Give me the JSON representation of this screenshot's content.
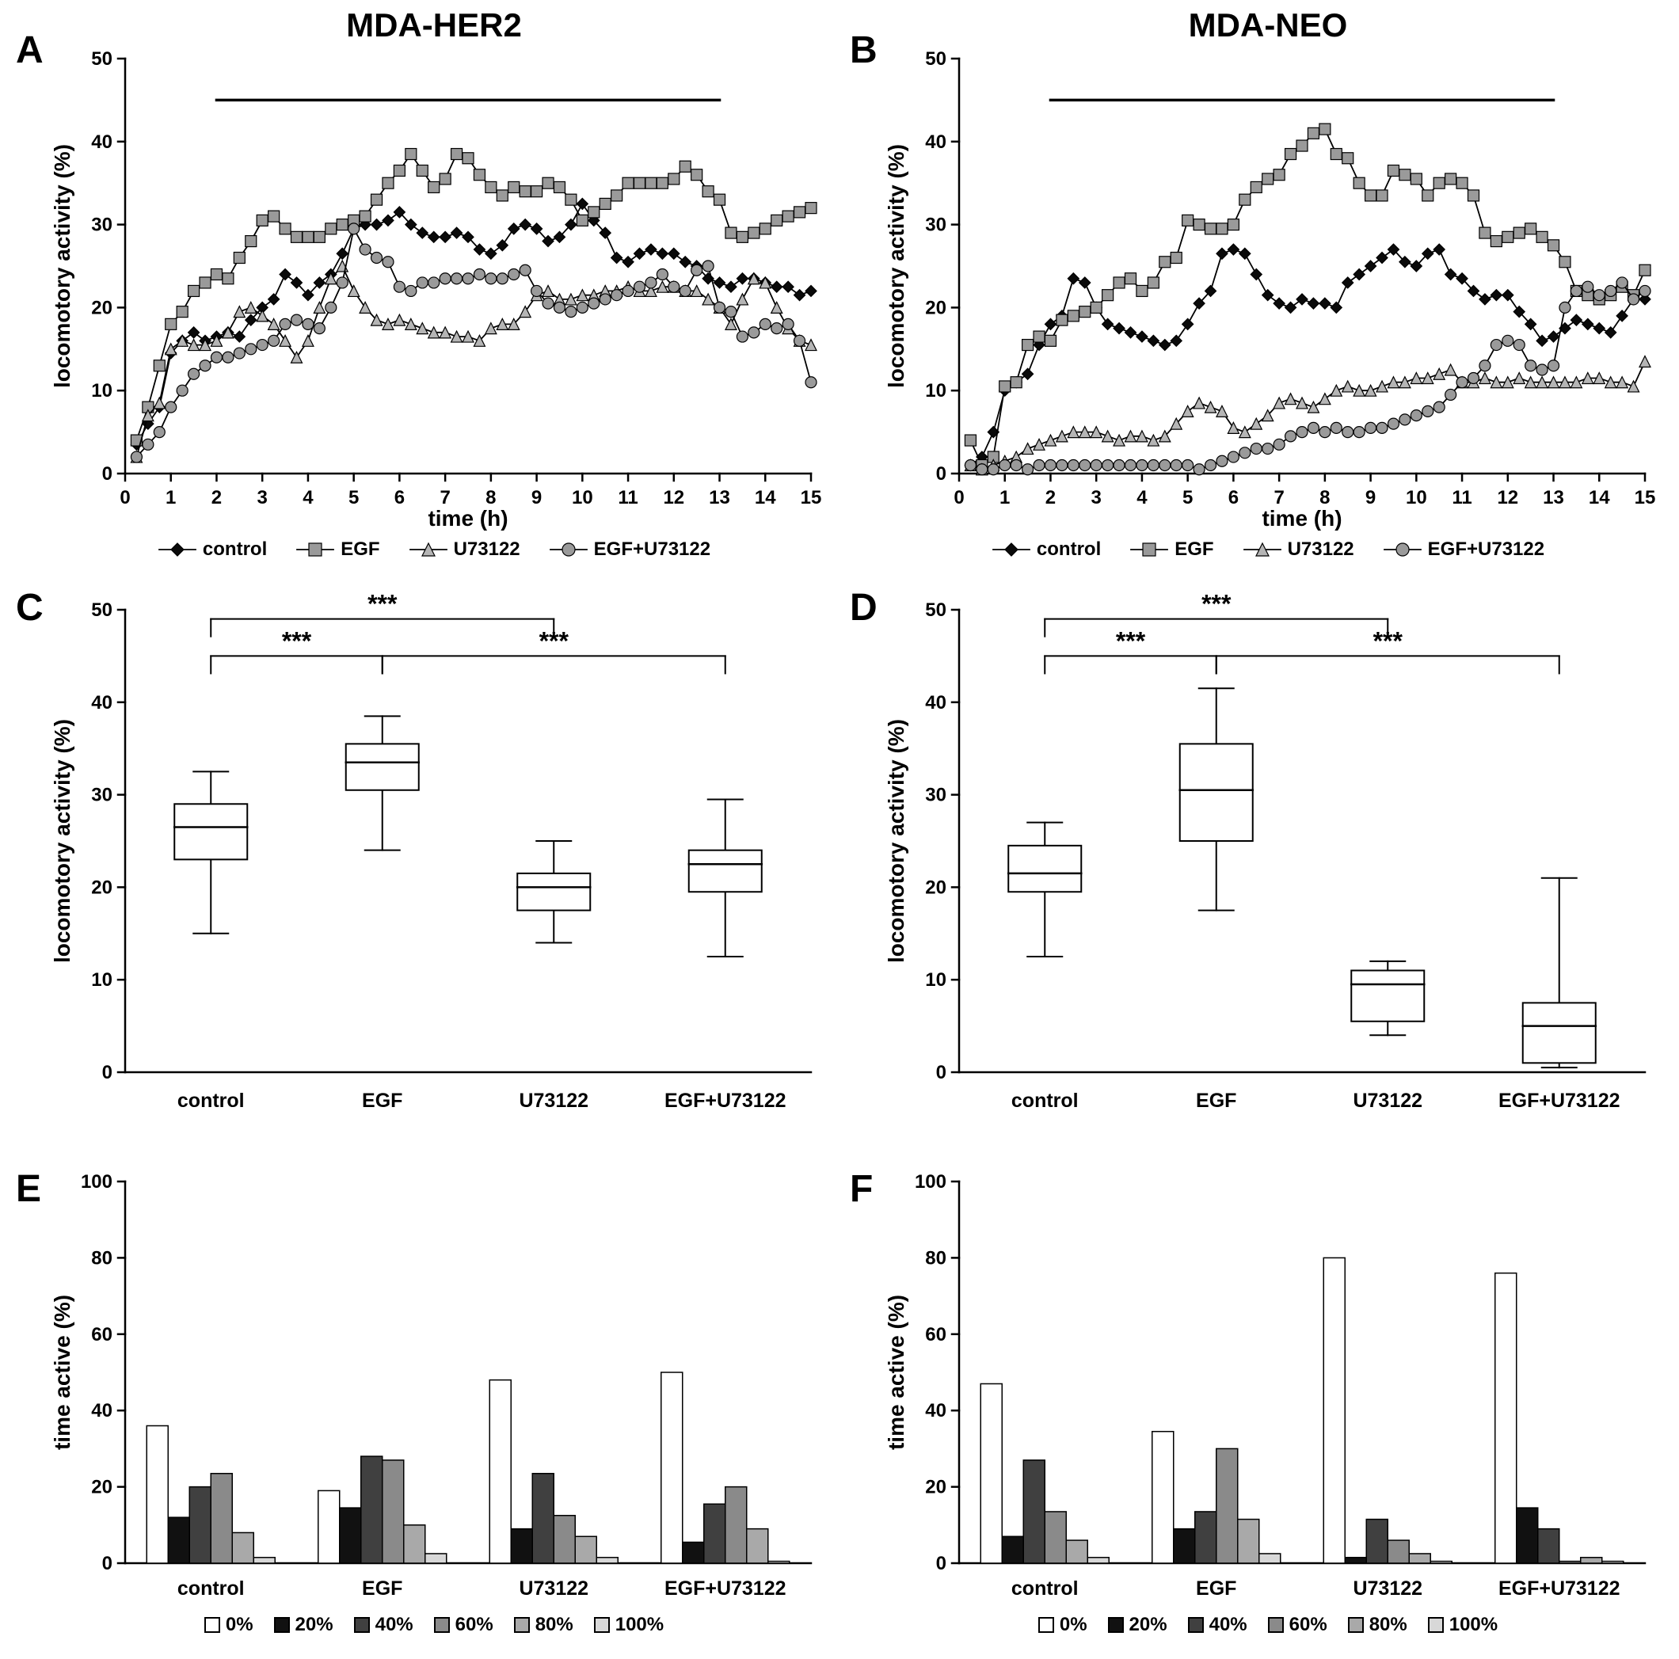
{
  "panels": [
    {
      "letter": "A",
      "title": "MDA-HER2"
    },
    {
      "letter": "B",
      "title": "MDA-NEO"
    },
    {
      "letter": "C"
    },
    {
      "letter": "D"
    },
    {
      "letter": "E"
    },
    {
      "letter": "F"
    }
  ],
  "styles": {
    "axis_color": "#000000",
    "line_color": "#000000",
    "marker_fills": {
      "control": "#0a0a0a",
      "EGF": "#9a9a9a",
      "U73122": "#b5b5b5",
      "EGF+U73122": "#9a9a9a"
    },
    "bar_colors": {
      "0%": "#ffffff",
      "20%": "#111111",
      "40%": "#404040",
      "60%": "#8a8a8a",
      "80%": "#a9a9a9",
      "100%": "#d8d8d8"
    }
  },
  "chart_data": [
    {
      "id": "A",
      "type": "line",
      "title": "MDA-HER2",
      "xlabel": "time (h)",
      "ylabel": "locomotory activity (%)",
      "xlim": [
        0,
        15
      ],
      "ylim": [
        0,
        50
      ],
      "xticks": [
        0,
        1,
        2,
        3,
        4,
        5,
        6,
        7,
        8,
        9,
        10,
        11,
        12,
        13,
        14,
        15
      ],
      "yticks": [
        0,
        10,
        20,
        30,
        40,
        50
      ],
      "treatment_bar": {
        "x1": 2,
        "x2": 13,
        "y": 45
      },
      "x": [
        0.25,
        0.5,
        0.75,
        1,
        1.25,
        1.5,
        1.75,
        2,
        2.25,
        2.5,
        2.75,
        3,
        3.25,
        3.5,
        3.75,
        4,
        4.25,
        4.5,
        4.75,
        5,
        5.25,
        5.5,
        5.75,
        6,
        6.25,
        6.5,
        6.75,
        7,
        7.25,
        7.5,
        7.75,
        8,
        8.25,
        8.5,
        8.75,
        9,
        9.25,
        9.5,
        9.75,
        10,
        10.25,
        10.5,
        10.75,
        11,
        11.25,
        11.5,
        11.75,
        12,
        12.25,
        12.5,
        12.75,
        13,
        13.25,
        13.5,
        13.75,
        14,
        14.25,
        14.5,
        14.75,
        15
      ],
      "series": [
        {
          "name": "control",
          "marker": "diamond",
          "fill": "#0a0a0a",
          "values": [
            3.5,
            6,
            8,
            14.5,
            16,
            17,
            16,
            16.5,
            17,
            16.5,
            18.5,
            20,
            21,
            24,
            23,
            21.5,
            23,
            24,
            26.5,
            29.5,
            30,
            30,
            30.5,
            31.5,
            30,
            29,
            28.5,
            28.5,
            29,
            28.5,
            27,
            26.5,
            27.5,
            29.5,
            30,
            29.5,
            28,
            28.5,
            30,
            32.5,
            30.5,
            29,
            26,
            25.5,
            26.5,
            27,
            26.5,
            26.5,
            25.5,
            25,
            23.5,
            23,
            22.5,
            23.5,
            23.5,
            23,
            22.5,
            22.5,
            21.5,
            22
          ]
        },
        {
          "name": "EGF",
          "marker": "square",
          "fill": "#9a9a9a",
          "values": [
            4,
            8,
            13,
            18,
            19.5,
            22,
            23,
            24,
            23.5,
            26,
            28,
            30.5,
            31,
            29.5,
            28.5,
            28.5,
            28.5,
            29.5,
            30,
            30.5,
            31,
            33,
            35,
            36.5,
            38.5,
            36.5,
            34.5,
            35.5,
            38.5,
            38,
            36,
            34.5,
            33.5,
            34.5,
            34,
            34,
            35,
            34.5,
            33,
            30.5,
            31.5,
            32.5,
            33.5,
            35,
            35,
            35,
            35,
            35.5,
            37,
            36,
            34,
            33,
            29,
            28.5,
            29,
            29.5,
            30.5,
            31,
            31.5,
            32
          ]
        },
        {
          "name": "U73122",
          "marker": "triangle",
          "fill": "#b5b5b5",
          "values": [
            2,
            7,
            8.5,
            15,
            16,
            15.5,
            15.5,
            16,
            17,
            19.5,
            20,
            19,
            18,
            16,
            14,
            16,
            20,
            23.5,
            25,
            22,
            20,
            18.5,
            18,
            18.5,
            18,
            17.5,
            17,
            17,
            16.5,
            16.5,
            16,
            17.5,
            18,
            18,
            19.5,
            21.5,
            22,
            21,
            21,
            21.5,
            21.5,
            22,
            22,
            22.5,
            22,
            22,
            22.5,
            22.5,
            22,
            22,
            21,
            20,
            18,
            21,
            23.5,
            23,
            20,
            17.5,
            16,
            15.5
          ]
        },
        {
          "name": "EGF+U73122",
          "marker": "circle",
          "fill": "#9a9a9a",
          "values": [
            2,
            3.5,
            5,
            8,
            10,
            12,
            13,
            14,
            14,
            14.5,
            15,
            15.5,
            16,
            18,
            18.5,
            18,
            17.5,
            20,
            23,
            29.5,
            27,
            26,
            25.5,
            22.5,
            22,
            23,
            23,
            23.5,
            23.5,
            23.5,
            24,
            23.5,
            23.5,
            24,
            24.5,
            22,
            20.5,
            20,
            19.5,
            20,
            20.5,
            21,
            21.5,
            22,
            22.5,
            23,
            24,
            22.5,
            22,
            24.5,
            25,
            20,
            19.5,
            16.5,
            17,
            18,
            17.5,
            18,
            16,
            11
          ]
        }
      ]
    },
    {
      "id": "B",
      "type": "line",
      "title": "MDA-NEO",
      "xlabel": "time (h)",
      "ylabel": "locomotory activity (%)",
      "xlim": [
        0,
        15
      ],
      "ylim": [
        0,
        50
      ],
      "xticks": [
        0,
        1,
        2,
        3,
        4,
        5,
        6,
        7,
        8,
        9,
        10,
        11,
        12,
        13,
        14,
        15
      ],
      "yticks": [
        0,
        10,
        20,
        30,
        40,
        50
      ],
      "treatment_bar": {
        "x1": 2,
        "x2": 13,
        "y": 45
      },
      "x": [
        0.25,
        0.5,
        0.75,
        1,
        1.25,
        1.5,
        1.75,
        2,
        2.25,
        2.5,
        2.75,
        3,
        3.25,
        3.5,
        3.75,
        4,
        4.25,
        4.5,
        4.75,
        5,
        5.25,
        5.5,
        5.75,
        6,
        6.25,
        6.5,
        6.75,
        7,
        7.25,
        7.5,
        7.75,
        8,
        8.25,
        8.5,
        8.75,
        9,
        9.25,
        9.5,
        9.75,
        10,
        10.25,
        10.5,
        10.75,
        11,
        11.25,
        11.5,
        11.75,
        12,
        12.25,
        12.5,
        12.75,
        13,
        13.25,
        13.5,
        13.75,
        14,
        14.25,
        14.5,
        14.75,
        15
      ],
      "series": [
        {
          "name": "control",
          "marker": "diamond",
          "fill": "#0a0a0a",
          "values": [
            1,
            2,
            5,
            10,
            11,
            12,
            15.5,
            18,
            19,
            23.5,
            23,
            20,
            18,
            17.5,
            17,
            16.5,
            16,
            15.5,
            16,
            18,
            20.5,
            22,
            26.5,
            27,
            26.5,
            24,
            21.5,
            20.5,
            20,
            21,
            20.5,
            20.5,
            20,
            23,
            24,
            25,
            26,
            27,
            25.5,
            25,
            26.5,
            27,
            24,
            23.5,
            22,
            21,
            21.5,
            21.5,
            19.5,
            18,
            16,
            16.5,
            17.5,
            18.5,
            18,
            17.5,
            17,
            19,
            21,
            21
          ]
        },
        {
          "name": "EGF",
          "marker": "square",
          "fill": "#9a9a9a",
          "values": [
            4,
            1,
            2,
            10.5,
            11,
            15.5,
            16.5,
            16,
            18.5,
            19,
            19.5,
            20,
            21.5,
            23,
            23.5,
            22,
            23,
            25.5,
            26,
            30.5,
            30,
            29.5,
            29.5,
            30,
            33,
            34.5,
            35.5,
            36,
            38.5,
            39.5,
            41,
            41.5,
            38.5,
            38,
            35,
            33.5,
            33.5,
            36.5,
            36,
            35.5,
            33.5,
            35,
            35.5,
            35,
            33.5,
            29,
            28,
            28.5,
            29,
            29.5,
            28.5,
            27.5,
            25.5,
            22,
            21.5,
            21,
            21.5,
            22.5,
            21.5,
            24.5
          ]
        },
        {
          "name": "U73122",
          "marker": "triangle",
          "fill": "#b5b5b5",
          "values": [
            1,
            0.5,
            1,
            1.5,
            2,
            3,
            3.5,
            4,
            4.5,
            5,
            5,
            5,
            4.5,
            4,
            4.5,
            4.5,
            4,
            4.5,
            6,
            7.5,
            8.5,
            8,
            7.5,
            5.5,
            5,
            6,
            7,
            8.5,
            9,
            8.5,
            8,
            9,
            10,
            10.5,
            10,
            10,
            10.5,
            11,
            11,
            11.5,
            11.5,
            12,
            12.5,
            11,
            11,
            11.5,
            11,
            11,
            11.5,
            11,
            11,
            11,
            11,
            11,
            11.5,
            11.5,
            11,
            11,
            10.5,
            13.5
          ]
        },
        {
          "name": "EGF+U73122",
          "marker": "circle",
          "fill": "#9a9a9a",
          "values": [
            1,
            0.5,
            0.5,
            1,
            1,
            0.5,
            1,
            1,
            1,
            1,
            1,
            1,
            1,
            1,
            1,
            1,
            1,
            1,
            1,
            1,
            0.5,
            1,
            1.5,
            2,
            2.5,
            3,
            3,
            3.5,
            4.5,
            5,
            5.5,
            5,
            5.5,
            5,
            5,
            5.5,
            5.5,
            6,
            6.5,
            7,
            7.5,
            8,
            9.5,
            11,
            11.5,
            13,
            15.5,
            16,
            15.5,
            13,
            12.5,
            13,
            20,
            22,
            22.5,
            21.5,
            22,
            23,
            21,
            22
          ]
        }
      ]
    },
    {
      "id": "C",
      "type": "box",
      "ylabel": "locomotory activity (%)",
      "ylim": [
        0,
        50
      ],
      "yticks": [
        0,
        10,
        20,
        30,
        40,
        50
      ],
      "categories": [
        "control",
        "EGF",
        "U73122",
        "EGF+U73122"
      ],
      "boxes": [
        {
          "whisker_low": 15,
          "q1": 23,
          "median": 26.5,
          "q3": 29,
          "whisker_high": 32.5
        },
        {
          "whisker_low": 24,
          "q1": 30.5,
          "median": 33.5,
          "q3": 35.5,
          "whisker_high": 38.5
        },
        {
          "whisker_low": 14,
          "q1": 17.5,
          "median": 20,
          "q3": 21.5,
          "whisker_high": 25
        },
        {
          "whisker_low": 12.5,
          "q1": 19.5,
          "median": 22.5,
          "q3": 24,
          "whisker_high": 29.5
        }
      ],
      "significance_brackets": [
        {
          "from": 0,
          "to": 2,
          "y": 49,
          "label": "***"
        },
        {
          "from": 0,
          "to": 1,
          "y": 45,
          "label": "***"
        },
        {
          "from": 1,
          "to": 3,
          "y": 45,
          "label": "***"
        }
      ]
    },
    {
      "id": "D",
      "type": "box",
      "ylabel": "locomotory activity (%)",
      "ylim": [
        0,
        50
      ],
      "yticks": [
        0,
        10,
        20,
        30,
        40,
        50
      ],
      "categories": [
        "control",
        "EGF",
        "U73122",
        "EGF+U73122"
      ],
      "boxes": [
        {
          "whisker_low": 12.5,
          "q1": 19.5,
          "median": 21.5,
          "q3": 24.5,
          "whisker_high": 27
        },
        {
          "whisker_low": 17.5,
          "q1": 25,
          "median": 30.5,
          "q3": 35.5,
          "whisker_high": 41.5
        },
        {
          "whisker_low": 4,
          "q1": 5.5,
          "median": 9.5,
          "q3": 11,
          "whisker_high": 12
        },
        {
          "whisker_low": 0.5,
          "q1": 1,
          "median": 5,
          "q3": 7.5,
          "whisker_high": 21
        }
      ],
      "significance_brackets": [
        {
          "from": 0,
          "to": 2,
          "y": 49,
          "label": "***"
        },
        {
          "from": 0,
          "to": 1,
          "y": 45,
          "label": "***"
        },
        {
          "from": 1,
          "to": 3,
          "y": 45,
          "label": "***"
        }
      ]
    },
    {
      "id": "E",
      "type": "groupedbar",
      "ylabel": "time active (%)",
      "ylim": [
        0,
        100
      ],
      "yticks": [
        0,
        20,
        40,
        60,
        80,
        100
      ],
      "categories": [
        "control",
        "EGF",
        "U73122",
        "EGF+U73122"
      ],
      "series": [
        {
          "name": "0%",
          "color": "#ffffff",
          "values": [
            36,
            19,
            48,
            50
          ]
        },
        {
          "name": "20%",
          "color": "#111111",
          "values": [
            12,
            14.5,
            9,
            5.5
          ]
        },
        {
          "name": "40%",
          "color": "#404040",
          "values": [
            20,
            28,
            23.5,
            15.5
          ]
        },
        {
          "name": "60%",
          "color": "#8a8a8a",
          "values": [
            23.5,
            27,
            12.5,
            20
          ]
        },
        {
          "name": "80%",
          "color": "#a9a9a9",
          "values": [
            8,
            10,
            7,
            9
          ]
        },
        {
          "name": "100%",
          "color": "#d8d8d8",
          "values": [
            1.5,
            2.5,
            1.5,
            0.5
          ]
        }
      ]
    },
    {
      "id": "F",
      "type": "groupedbar",
      "ylabel": "time active (%)",
      "ylim": [
        0,
        100
      ],
      "yticks": [
        0,
        20,
        40,
        60,
        80,
        100
      ],
      "categories": [
        "control",
        "EGF",
        "U73122",
        "EGF+U73122"
      ],
      "series": [
        {
          "name": "0%",
          "color": "#ffffff",
          "values": [
            47,
            34.5,
            80,
            76
          ]
        },
        {
          "name": "20%",
          "color": "#111111",
          "values": [
            7,
            9,
            1.5,
            14.5
          ]
        },
        {
          "name": "40%",
          "color": "#404040",
          "values": [
            27,
            13.5,
            11.5,
            9
          ]
        },
        {
          "name": "60%",
          "color": "#8a8a8a",
          "values": [
            13.5,
            30,
            6,
            0.5
          ]
        },
        {
          "name": "80%",
          "color": "#a9a9a9",
          "values": [
            6,
            11.5,
            2.5,
            1.5
          ]
        },
        {
          "name": "100%",
          "color": "#d8d8d8",
          "values": [
            1.5,
            2.5,
            0.5,
            0.5
          ]
        }
      ]
    }
  ]
}
